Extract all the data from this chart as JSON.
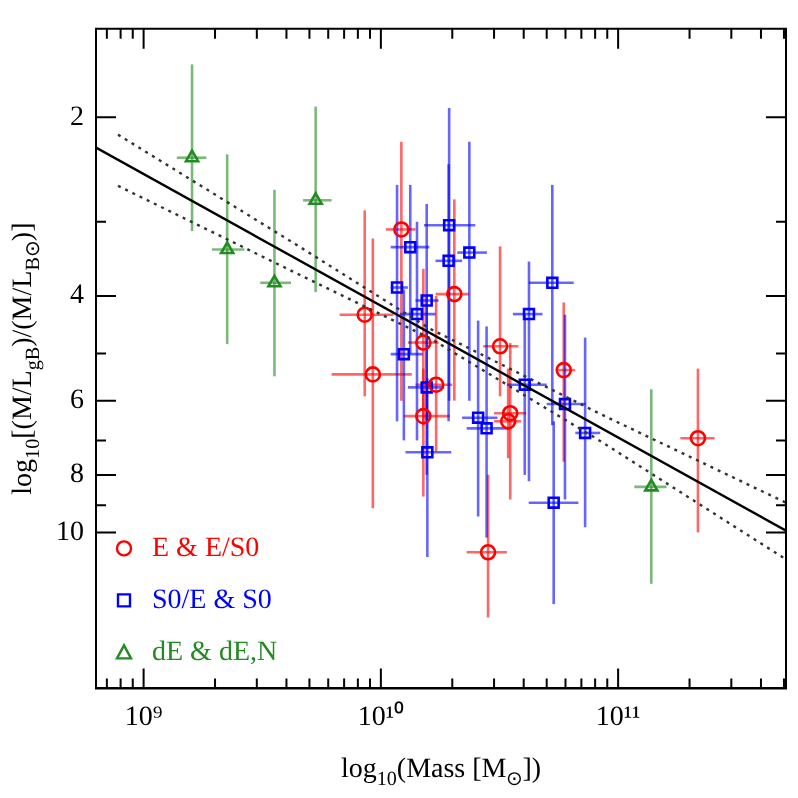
{
  "chart_data": {
    "type": "scatter",
    "xlabel": "log$_{10}$(Mass [M$_{⊙}$])",
    "ylabel": "log$_{10}$[(M/L$_{gB}$)/(M/L$_{B⊙}$)]",
    "log": "xy",
    "legend": "bottom left",
    "xlim": [
      630000000.0,
      510000000000.0
    ],
    "ylim": [
      18.3,
      1.42
    ],
    "xticks": [
      {
        "value": 700000000.0,
        "label": null
      },
      {
        "value": 800000000.0,
        "label": null
      },
      {
        "value": 900000000.0,
        "label": null
      },
      {
        "value": 1000000000.0,
        "label": "10⁹"
      },
      {
        "value": 2000000000.0,
        "label": null
      },
      {
        "value": 3000000000.0,
        "label": null
      },
      {
        "value": 4000000000.0,
        "label": null
      },
      {
        "value": 5000000000.0,
        "label": null
      },
      {
        "value": 6000000000.0,
        "label": null
      },
      {
        "value": 7000000000.0,
        "label": null
      },
      {
        "value": 8000000000.0,
        "label": null
      },
      {
        "value": 9000000000.0,
        "label": null
      },
      {
        "value": 10000000000.0,
        "label": "10¹⁰"
      },
      {
        "value": 20000000000.0,
        "label": null
      },
      {
        "value": 30000000000.0,
        "label": null
      },
      {
        "value": 40000000000.0,
        "label": null
      },
      {
        "value": 50000000000.0,
        "label": null
      },
      {
        "value": 60000000000.0,
        "label": null
      },
      {
        "value": 70000000000.0,
        "label": null
      },
      {
        "value": 80000000000.0,
        "label": null
      },
      {
        "value": 90000000000.0,
        "label": null
      },
      {
        "value": 100000000000.0,
        "label": "10¹¹"
      },
      {
        "value": 200000000000.0,
        "label": null
      },
      {
        "value": 300000000000.0,
        "label": null
      },
      {
        "value": 400000000000.0,
        "label": null
      },
      {
        "value": 500000000000.0,
        "label": null
      }
    ],
    "yticks": [
      2,
      {
        "value": 3,
        "label": null
      },
      4,
      {
        "value": 5,
        "label": null
      },
      6,
      {
        "value": 7,
        "label": null
      },
      8,
      {
        "value": 9,
        "label": null
      },
      10
    ],
    "series": [
      {
        "type": "line",
        "color": "#000000",
        "line_style": "solid",
        "x": [
          630000000.0,
          510000000000.0
        ],
        "values": [
          2.25,
          9.93
        ]
      },
      {
        "type": "line",
        "color": "#333333",
        "line_style": "dotted",
        "x": [
          780000000.0,
          4520000000.0,
          16100000000.0,
          84300000000.0,
          510000000000.0
        ],
        "values": [
          2.14,
          3.3,
          4.54,
          6.32,
          8.91
        ]
      },
      {
        "type": "line",
        "color": "#333333",
        "line_style": "dotted",
        "x": [
          780000000.0,
          4520000000.0,
          16100000000.0,
          84300000000.0,
          510000000000.0
        ],
        "values": [
          2.61,
          3.68,
          4.71,
          7.02,
          11.1
        ]
      },
      {
        "name": "E & E/S0",
        "color": "#ff0000",
        "marker": "circle",
        "x": [
          12200000000.0,
          20400000000.0,
          8550000000.0,
          15100000000.0,
          9250000000.0,
          17100000000.0,
          31800000000.0,
          59000000000.0,
          15100000000.0,
          35100000000.0,
          34400000000.0,
          28300000000.0,
          217000000000.0
        ],
        "values": [
          3.09,
          3.97,
          4.3,
          4.79,
          5.42,
          5.64,
          4.86,
          5.33,
          6.37,
          6.3,
          6.5,
          10.8,
          6.94
        ],
        "errors": [
          [
            2.2,
            6.0
          ],
          [
            2.75,
            6.0
          ],
          [
            2.87,
            5.9
          ],
          [
            3.6,
            6.6
          ],
          [
            3.2,
            9.1
          ],
          [
            4.0,
            7.3
          ],
          [
            3.3,
            5.9
          ],
          [
            4.1,
            7.6
          ],
          [
            5.3,
            8.7
          ],
          [
            4.8,
            8.8
          ],
          [
            5.3,
            7.5
          ],
          [
            8.0,
            13.9
          ],
          [
            5.3,
            10.0
          ]
        ],
        "xerrors": [
          [
            10500000000.0,
            14000000000.0
          ],
          [
            17000000000.0,
            23500000000.0
          ],
          [
            6700000000.0,
            11300000000.0
          ],
          [
            13000000000.0,
            17500000000.0
          ],
          [
            6200000000.0,
            13500000000.0
          ],
          [
            14000000000.0,
            20000000000.0
          ],
          [
            27000000000.0,
            38000000000.0
          ],
          [
            55000000000.0,
            66000000000.0
          ],
          [
            12500000000.0,
            19500000000.0
          ],
          [
            30000000000.0,
            41000000000.0
          ],
          [
            30000000000.0,
            39000000000.0
          ],
          [
            23000000000.0,
            34000000000.0
          ],
          [
            183000000000.0,
            255000000000.0
          ]
        ]
      },
      {
        "name": "S0/E & S0",
        "color": "#0000ff",
        "marker": "square",
        "x": [
          19400000000.0,
          13300000000.0,
          19300000000.0,
          23600000000.0,
          11700000000.0,
          15600000000.0,
          14200000000.0,
          12500000000.0,
          15600000000.0,
          42100000000.0,
          52800000000.0,
          40400000000.0,
          15700000000.0,
          25700000000.0,
          27900000000.0,
          59700000000.0,
          72600000000.0,
          53500000000.0
        ],
        "values": [
          3.04,
          3.31,
          3.49,
          3.38,
          3.87,
          4.07,
          4.29,
          5.01,
          5.7,
          4.29,
          3.8,
          5.64,
          7.33,
          6.41,
          6.68,
          6.08,
          6.8,
          8.91
        ],
        "errors": [
          [
            1.93,
            6.0
          ],
          [
            2.6,
            5.0
          ],
          [
            2.4,
            6.5
          ],
          [
            2.2,
            6.0
          ],
          [
            2.6,
            6.5
          ],
          [
            2.8,
            6.5
          ],
          [
            3.0,
            7.0
          ],
          [
            3.9,
            7.0
          ],
          [
            4.0,
            8.0
          ],
          [
            3.5,
            8.2
          ],
          [
            2.6,
            6.6
          ],
          [
            4.3,
            8.0
          ],
          [
            5.5,
            11.0
          ],
          [
            4.4,
            9.4
          ],
          [
            4.5,
            10.2
          ],
          [
            4.3,
            8.8
          ],
          [
            4.7,
            9.8
          ],
          [
            6.5,
            13.2
          ]
        ],
        "xerrors": [
          [
            15200000000.0,
            25000000000.0
          ],
          [
            11000000000.0,
            16000000000.0
          ],
          [
            17000000000.0,
            22000000000.0
          ],
          [
            21000000000.0,
            28000000000.0
          ],
          [
            11000000000.0,
            13000000000.0
          ],
          [
            14000000000.0,
            17500000000.0
          ],
          [
            12000000000.0,
            17000000000.0
          ],
          [
            11000000000.0,
            15000000000.0
          ],
          [
            13000000000.0,
            18500000000.0
          ],
          [
            36000000000.0,
            48000000000.0
          ],
          [
            42000000000.0,
            65000000000.0
          ],
          [
            34000000000.0,
            50000000000.0
          ],
          [
            12700000000.0,
            19800000000.0
          ],
          [
            22000000000.0,
            31000000000.0
          ],
          [
            23000000000.0,
            35000000000.0
          ],
          [
            50000000000.0,
            73000000000.0
          ],
          [
            66000000000.0,
            84000000000.0
          ],
          [
            42000000000.0,
            68000000000.0
          ]
        ]
      },
      {
        "name": "dE & dE,N",
        "color": "#228b22",
        "marker": "triangle",
        "x": [
          1600000000.0,
          2250000000.0,
          3560000000.0,
          5310000000.0,
          138000000000.0
        ],
        "values": [
          2.34,
          3.34,
          3.8,
          2.76,
          8.38
        ],
        "errors": [
          [
            1.63,
            3.11
          ],
          [
            2.31,
            4.82
          ],
          [
            2.65,
            5.46
          ],
          [
            1.92,
            3.94
          ],
          [
            5.74,
            12.2
          ]
        ],
        "xerrors": [
          [
            1380000000.0,
            1840000000.0
          ],
          [
            1940000000.0,
            2660000000.0
          ],
          [
            3100000000.0,
            4180000000.0
          ],
          [
            4700000000.0,
            6200000000.0
          ],
          [
            117000000000.0,
            160000000000.0
          ]
        ]
      }
    ]
  }
}
